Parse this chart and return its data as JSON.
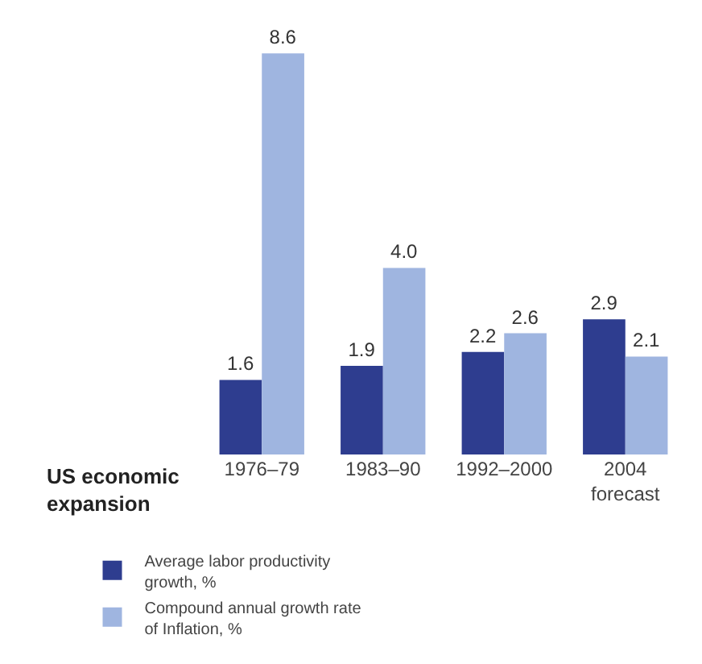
{
  "chart_data": {
    "type": "bar",
    "xlabel": "US economic expansion",
    "categories": [
      "1976–79",
      "1983–90",
      "1992–2000",
      "2004 forecast"
    ],
    "series": [
      {
        "name": "Average labor productivity growth, %",
        "color": "#2e3d8f",
        "values": [
          1.6,
          1.9,
          2.2,
          2.9
        ],
        "value_labels": [
          "1.6",
          "1.9",
          "2.2",
          "2.9"
        ]
      },
      {
        "name": "Compound annual growth rate of Inflation, %",
        "color": "#9fb5e0",
        "values": [
          8.6,
          4.0,
          2.6,
          2.1
        ],
        "value_labels": [
          "8.6",
          "4.0",
          "2.6",
          "2.1"
        ]
      }
    ],
    "legend": "bottom"
  }
}
